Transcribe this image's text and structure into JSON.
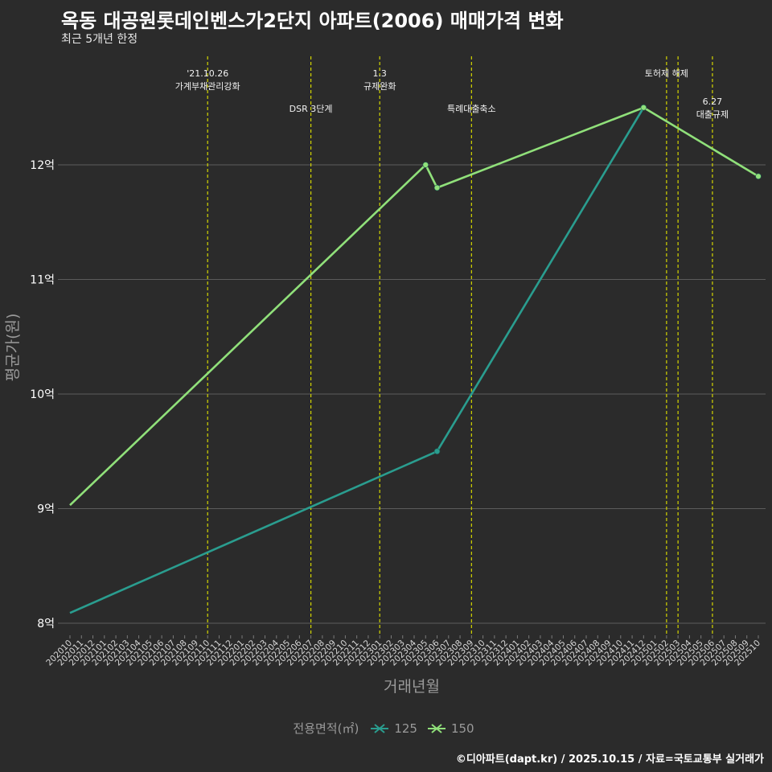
{
  "title": "옥동 대공원롯데인벤스가2단지 아파트(2006) 매매가격 변화",
  "subtitle": "최근 5개년 한정",
  "footer": "©디아파트(dapt.kr) / 2025.10.15 / 자료=국토교통부 실거래가",
  "legend": {
    "title": "전용면적(㎡)",
    "items": [
      {
        "label": "125",
        "color": "#2a9d8f"
      },
      {
        "label": "150",
        "color": "#90e07a"
      }
    ]
  },
  "colors": {
    "background": "#2b2b2b",
    "grid": "#5c5c5c",
    "event_line": "#d4d600"
  },
  "chart_data": {
    "type": "line",
    "title": "옥동 대공원롯데인벤스가2단지 아파트(2006) 매매가격 변화",
    "xlabel": "거래년월",
    "ylabel": "평균가(원)",
    "ylim": [
      7.8,
      12.65
    ],
    "y_ticks": [
      {
        "value": 8,
        "label": "8억"
      },
      {
        "value": 9,
        "label": "9억"
      },
      {
        "value": 10,
        "label": "10억"
      },
      {
        "value": 11,
        "label": "11억"
      },
      {
        "value": 12,
        "label": "12억"
      }
    ],
    "categories": [
      "202010",
      "202011",
      "202012",
      "202101",
      "202102",
      "202103",
      "202104",
      "202105",
      "202106",
      "202107",
      "202108",
      "202109",
      "202110",
      "202111",
      "202112",
      "202201",
      "202202",
      "202203",
      "202204",
      "202205",
      "202206",
      "202207",
      "202208",
      "202209",
      "202210",
      "202211",
      "202212",
      "202301",
      "202302",
      "202303",
      "202304",
      "202305",
      "202306",
      "202307",
      "202308",
      "202309",
      "202310",
      "202311",
      "202312",
      "202401",
      "202402",
      "202403",
      "202404",
      "202405",
      "202406",
      "202407",
      "202408",
      "202409",
      "202410",
      "202411",
      "202412",
      "202501",
      "202502",
      "202503",
      "202504",
      "202505",
      "202506",
      "202507",
      "202508",
      "202509",
      "202510"
    ],
    "series": [
      {
        "name": "125",
        "color": "#2a9d8f",
        "points": [
          {
            "x": "202010",
            "y": 8.09,
            "marker": false
          },
          {
            "x": "202306",
            "y": 9.5,
            "marker": true
          },
          {
            "x": "202412",
            "y": 12.5,
            "marker": true
          }
        ]
      },
      {
        "name": "150",
        "color": "#90e07a",
        "points": [
          {
            "x": "202010",
            "y": 9.03,
            "marker": false
          },
          {
            "x": "202305",
            "y": 12.0,
            "marker": true
          },
          {
            "x": "202306",
            "y": 11.8,
            "marker": true
          },
          {
            "x": "202412",
            "y": 12.5,
            "marker": true
          },
          {
            "x": "202510",
            "y": 11.9,
            "marker": true
          }
        ]
      }
    ],
    "events": [
      {
        "x": "202110",
        "lines": [
          "'21.10.26",
          "가계부채관리강화"
        ],
        "level": 1
      },
      {
        "x": "202207",
        "lines": [
          "DSR 3단계"
        ],
        "level": 2
      },
      {
        "x": "202301",
        "lines": [
          "1.3",
          "규제완화"
        ],
        "level": 1
      },
      {
        "x": "202309",
        "lines": [
          "특례대출축소"
        ],
        "level": 2
      },
      {
        "x": "202502",
        "lines": [
          "토허제 해제"
        ],
        "level": 1
      },
      {
        "x": "202503",
        "lines": [],
        "level": 0
      },
      {
        "x": "202506",
        "lines": [
          "6.27",
          "대출규제"
        ],
        "level": 3
      }
    ]
  }
}
